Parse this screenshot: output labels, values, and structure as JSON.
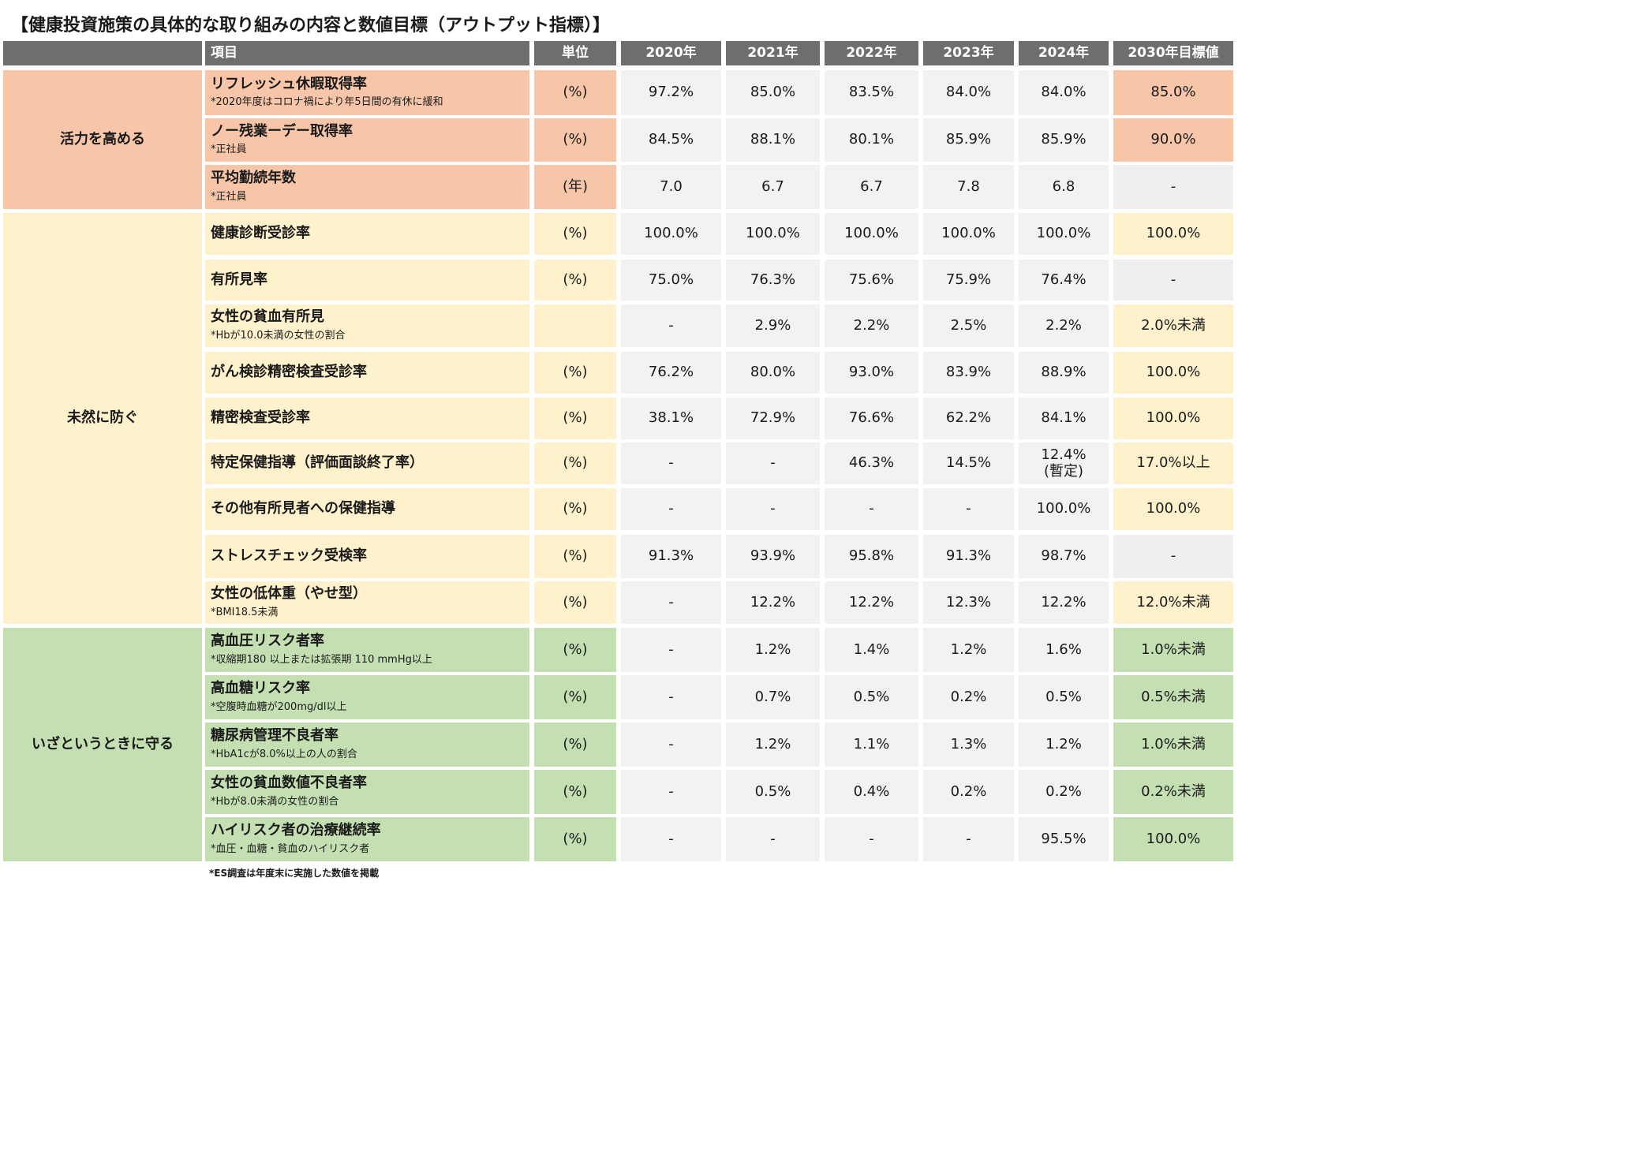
{
  "title": "【健康投資施策の具体的な取り組みの内容と数値目標（アウトプット指標）】",
  "header": {
    "item": "項目",
    "unit": "単位",
    "years": [
      "2020年",
      "2021年",
      "2022年",
      "2023年",
      "2024年"
    ],
    "target": "2030年目標値"
  },
  "colors": {
    "header_bg": "#6e6e6e",
    "vitality": "#f7c6a8",
    "prevent": "#fff1cc",
    "protect": "#c4dfb1",
    "value_bg": "#f2f2f2"
  },
  "categories": [
    {
      "name": "活力を高める",
      "color": "orange",
      "rows": [
        {
          "name": "リフレッシュ休暇取得率",
          "note": "*2020年度はコロナ禍により年5日間の有休に緩和",
          "unit": "(%)",
          "values": [
            "97.2%",
            "85.0%",
            "83.5%",
            "84.0%",
            "84.0%"
          ],
          "target": "85.0%",
          "target_color": "orange"
        },
        {
          "name": "ノー残業ーデー取得率",
          "note": "*正社員",
          "unit": "(%)",
          "values": [
            "84.5%",
            "88.1%",
            "80.1%",
            "85.9%",
            "85.9%"
          ],
          "target": "90.0%",
          "target_color": "orange"
        },
        {
          "name": "平均勤続年数",
          "note": "*正社員",
          "unit": "(年)",
          "values": [
            "7.0",
            "6.7",
            "6.7",
            "7.8",
            "6.8"
          ],
          "target": "-",
          "target_color": "grey"
        }
      ]
    },
    {
      "name": "未然に防ぐ",
      "color": "yellow",
      "rows": [
        {
          "name": "健康診断受診率",
          "note": "",
          "unit": "(%)",
          "values": [
            "100.0%",
            "100.0%",
            "100.0%",
            "100.0%",
            "100.0%"
          ],
          "target": "100.0%",
          "target_color": "yellow"
        },
        {
          "name": "有所見率",
          "note": "",
          "unit": "(%)",
          "values": [
            "75.0%",
            "76.3%",
            "75.6%",
            "75.9%",
            "76.4%"
          ],
          "target": "-",
          "target_color": "grey"
        },
        {
          "name": "女性の貧血有所見",
          "note": "*Hbが10.0未満の女性の割合",
          "unit": "",
          "values": [
            "-",
            "2.9%",
            "2.2%",
            "2.5%",
            "2.2%"
          ],
          "target": "2.0%未満",
          "target_color": "yellow"
        },
        {
          "name": "がん検診精密検査受診率",
          "note": "",
          "unit": "(%)",
          "values": [
            "76.2%",
            "80.0%",
            "93.0%",
            "83.9%",
            "88.9%"
          ],
          "target": "100.0%",
          "target_color": "yellow"
        },
        {
          "name": "精密検査受診率",
          "note": "",
          "unit": "(%)",
          "values": [
            "38.1%",
            "72.9%",
            "76.6%",
            "62.2%",
            "84.1%"
          ],
          "target": "100.0%",
          "target_color": "yellow"
        },
        {
          "name": "特定保健指導（評価面談終了率）",
          "note": "",
          "unit": "(%)",
          "values": [
            "-",
            "-",
            "46.3%",
            "14.5%",
            "12.4%\n(暫定)"
          ],
          "target": "17.0%以上",
          "target_color": "yellow"
        },
        {
          "name": "その他有所見者への保健指導",
          "note": "",
          "unit": "(%)",
          "values": [
            "-",
            "-",
            "-",
            "-",
            "100.0%"
          ],
          "target": "100.0%",
          "target_color": "yellow"
        },
        {
          "name": "ストレスチェック受検率",
          "note": "",
          "unit": "(%)",
          "values": [
            "91.3%",
            "93.9%",
            "95.8%",
            "91.3%",
            "98.7%"
          ],
          "target": "-",
          "target_color": "grey"
        },
        {
          "name": "女性の低体重（やせ型）",
          "note": "*BMI18.5未満",
          "unit": "(%)",
          "values": [
            "-",
            "12.2%",
            "12.2%",
            "12.3%",
            "12.2%"
          ],
          "target": "12.0%未満",
          "target_color": "yellow"
        }
      ]
    },
    {
      "name": "いざというときに守る",
      "color": "green",
      "rows": [
        {
          "name": "高血圧リスク者率",
          "note": "*収縮期180 以上または拡張期 110 mmHg以上",
          "unit": "(%)",
          "values": [
            "-",
            "1.2%",
            "1.4%",
            "1.2%",
            "1.6%"
          ],
          "target": "1.0%未満",
          "target_color": "green"
        },
        {
          "name": "高血糖リスク率",
          "note": "*空腹時血糖が200mg/dl以上",
          "unit": "(%)",
          "values": [
            "-",
            "0.7%",
            "0.5%",
            "0.2%",
            "0.5%"
          ],
          "target": "0.5%未満",
          "target_color": "green"
        },
        {
          "name": "糖尿病管理不良者率",
          "note": "*HbA1cが8.0%以上の人の割合",
          "unit": "(%)",
          "values": [
            "-",
            "1.2%",
            "1.1%",
            "1.3%",
            "1.2%"
          ],
          "target": "1.0%未満",
          "target_color": "green"
        },
        {
          "name": "女性の貧血数値不良者率",
          "note": "*Hbが8.0未満の女性の割合",
          "unit": "(%)",
          "values": [
            "-",
            "0.5%",
            "0.4%",
            "0.2%",
            "0.2%"
          ],
          "target": "0.2%未満",
          "target_color": "green"
        },
        {
          "name": "ハイリスク者の治療継続率",
          "note": "*血圧・血糖・貧血のハイリスク者",
          "unit": "(%)",
          "values": [
            "-",
            "-",
            "-",
            "-",
            "95.5%"
          ],
          "target": "100.0%",
          "target_color": "green"
        }
      ]
    }
  ],
  "footnote": "*ES調査は年度末に実施した数値を掲載"
}
